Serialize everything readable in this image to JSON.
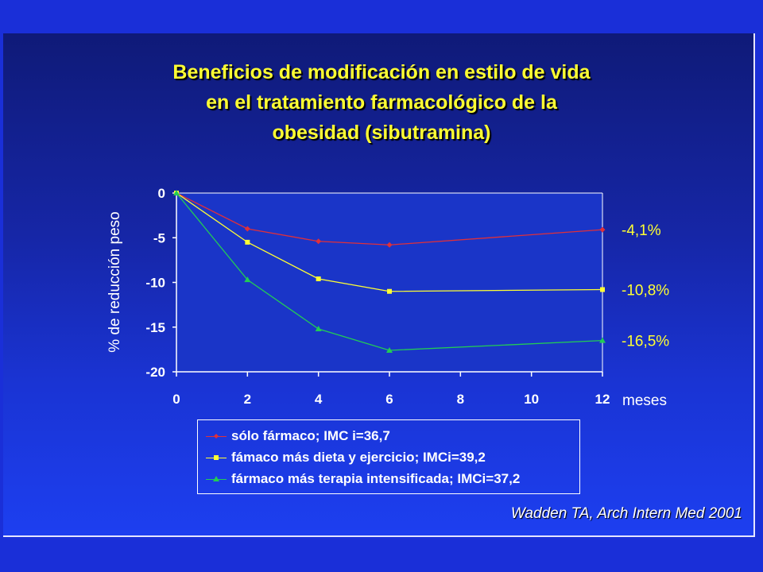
{
  "slide": {
    "title_lines": [
      "Beneficios de modificación en estilo de vida",
      "en el tratamiento farmacológico de la",
      "obesidad (sibutramina)"
    ],
    "citation": "Wadden TA, Arch Intern Med 2001",
    "colors": {
      "background": "#1a2fd8",
      "title": "#ffff33",
      "axis": "#ffffff",
      "plot_area": "#1a35c8"
    }
  },
  "chart_data": {
    "type": "line",
    "title": "",
    "xlabel": "meses",
    "ylabel": "% de reducción peso",
    "x": [
      0,
      2,
      4,
      6,
      12
    ],
    "x_ticks": [
      "0",
      "2",
      "4",
      "6",
      "8",
      "10",
      "12"
    ],
    "x_tick_values": [
      0,
      2,
      4,
      6,
      8,
      10,
      12
    ],
    "y_ticks": [
      "0",
      "-5",
      "-10",
      "-15",
      "-20"
    ],
    "y_tick_values": [
      0,
      -5,
      -10,
      -15,
      -20
    ],
    "xlim": [
      0,
      12
    ],
    "ylim": [
      -20,
      0
    ],
    "grid": false,
    "legend_position": "bottom",
    "series": [
      {
        "name": "sólo fármaco; IMC i=36,7",
        "values": [
          0,
          -4.0,
          -5.4,
          -5.8,
          -4.1
        ],
        "color": "#e0303a",
        "marker": "diamond",
        "end_label": "-4,1%"
      },
      {
        "name": "fámaco más dieta y ejercicio; IMCi=39,2",
        "values": [
          0,
          -5.5,
          -9.6,
          -11.0,
          -10.8
        ],
        "color": "#ffff33",
        "marker": "square",
        "end_label": "-10,8%"
      },
      {
        "name": "fármaco más terapia intensificada; IMCi=37,2",
        "values": [
          0,
          -9.7,
          -15.2,
          -17.6,
          -16.5
        ],
        "color": "#22cc55",
        "marker": "triangle",
        "end_label": "-16,5%"
      }
    ]
  }
}
